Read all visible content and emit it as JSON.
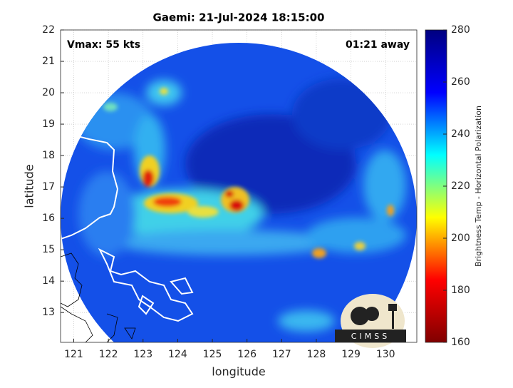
{
  "chart_data": {
    "type": "image",
    "title": "Gaemi: 21-Jul-2024 18:15:00",
    "annotations": [
      "Vmax: 55 kts",
      "01:21 away"
    ],
    "xlabel": "longitude",
    "ylabel": "latitude",
    "xlim": [
      120.62,
      130.9
    ],
    "ylim": [
      12.05,
      22
    ],
    "xticks": [
      121,
      122,
      123,
      124,
      125,
      126,
      127,
      128,
      129,
      130
    ],
    "yticks": [
      13,
      14,
      15,
      16,
      17,
      18,
      19,
      20,
      21,
      22
    ],
    "grid": true,
    "colorbar": {
      "label": "Brightness Temp - Horizontal Polarization",
      "clim": [
        160,
        280
      ],
      "ticks": [
        160,
        180,
        200,
        220,
        240,
        260,
        280
      ],
      "colors": [
        "#800000",
        "#ff0000",
        "#ffff00",
        "#00ffff",
        "#0000ff",
        "#000080"
      ]
    },
    "logo": "CIMSS"
  }
}
